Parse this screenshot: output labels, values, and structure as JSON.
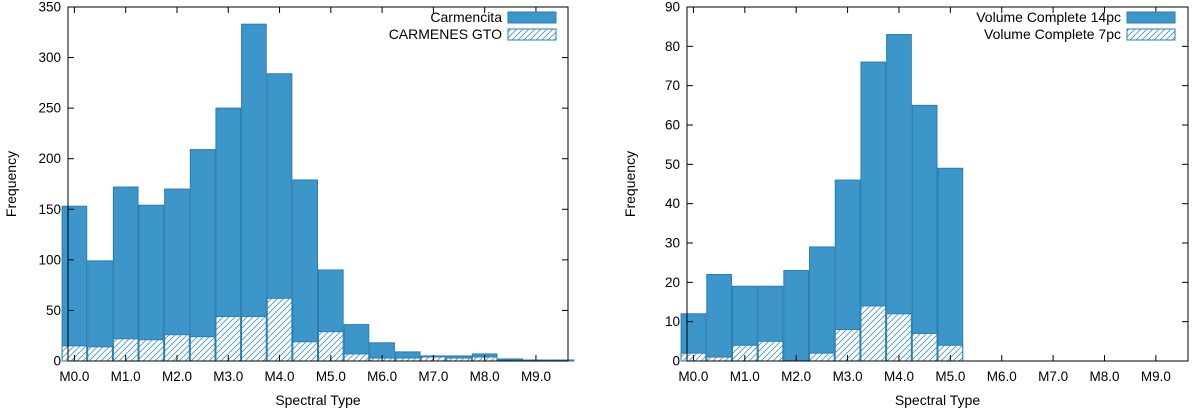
{
  "chart_data": [
    {
      "type": "bar",
      "xlabel": "Spectral Type",
      "ylabel": "Frequency",
      "ylim": [
        0,
        350
      ],
      "yticks": [
        0,
        50,
        100,
        150,
        200,
        250,
        300,
        350
      ],
      "xlim": [
        -0.25,
        19.25
      ],
      "xticks": [
        {
          "label": "M0.0",
          "pos": 0
        },
        {
          "label": "M1.0",
          "pos": 2
        },
        {
          "label": "M2.0",
          "pos": 4
        },
        {
          "label": "M3.0",
          "pos": 6
        },
        {
          "label": "M4.0",
          "pos": 8
        },
        {
          "label": "M5.0",
          "pos": 10
        },
        {
          "label": "M6.0",
          "pos": 12
        },
        {
          "label": "M7.0",
          "pos": 14
        },
        {
          "label": "M8.0",
          "pos": 16
        },
        {
          "label": "M9.0",
          "pos": 18
        }
      ],
      "categories": [
        "M0.0",
        "M0.5",
        "M1.0",
        "M1.5",
        "M2.0",
        "M2.5",
        "M3.0",
        "M3.5",
        "M4.0",
        "M4.5",
        "M5.0",
        "M5.5",
        "M6.0",
        "M6.5",
        "M7.0",
        "M7.5",
        "M8.0",
        "M8.5",
        "M9.0",
        "M9.5"
      ],
      "legend_position": "top-right",
      "series": [
        {
          "name": "Carmencita",
          "style": "solid",
          "values": [
            153,
            99,
            172,
            154,
            170,
            209,
            250,
            333,
            284,
            179,
            90,
            36,
            18,
            9,
            5,
            5,
            7,
            2,
            1,
            1
          ]
        },
        {
          "name": "CARMENES GTO",
          "style": "hatched",
          "values": [
            15,
            14,
            22,
            21,
            26,
            24,
            44,
            44,
            62,
            19,
            29,
            7,
            3,
            3,
            4,
            3,
            4,
            1,
            0,
            0
          ]
        }
      ]
    },
    {
      "type": "bar",
      "xlabel": "Spectral Type",
      "ylabel": "Frequency",
      "ylim": [
        0,
        90
      ],
      "yticks": [
        0,
        10,
        20,
        30,
        40,
        50,
        60,
        70,
        80,
        90
      ],
      "xlim": [
        -0.25,
        19.25
      ],
      "xticks": [
        {
          "label": "M0.0",
          "pos": 0
        },
        {
          "label": "M1.0",
          "pos": 2
        },
        {
          "label": "M2.0",
          "pos": 4
        },
        {
          "label": "M3.0",
          "pos": 6
        },
        {
          "label": "M4.0",
          "pos": 8
        },
        {
          "label": "M5.0",
          "pos": 10
        },
        {
          "label": "M6.0",
          "pos": 12
        },
        {
          "label": "M7.0",
          "pos": 14
        },
        {
          "label": "M8.0",
          "pos": 16
        },
        {
          "label": "M9.0",
          "pos": 18
        }
      ],
      "categories": [
        "M0.0",
        "M0.5",
        "M1.0",
        "M1.5",
        "M2.0",
        "M2.5",
        "M3.0",
        "M3.5",
        "M4.0",
        "M4.5",
        "M5.0"
      ],
      "legend_position": "top-right",
      "series": [
        {
          "name": "Volume Complete 14pc",
          "style": "solid",
          "values": [
            12,
            22,
            19,
            19,
            23,
            29,
            46,
            76,
            83,
            65,
            49
          ]
        },
        {
          "name": "Volume Complete 7pc",
          "style": "hatched",
          "values": [
            2,
            1,
            4,
            5,
            0,
            2,
            8,
            14,
            12,
            7,
            4
          ]
        }
      ]
    }
  ],
  "colors": {
    "bar_fill": "#3d96c9",
    "bar_edge": "#2a7db2",
    "hatch_line": "#3d96c9",
    "axis": "#000000"
  }
}
